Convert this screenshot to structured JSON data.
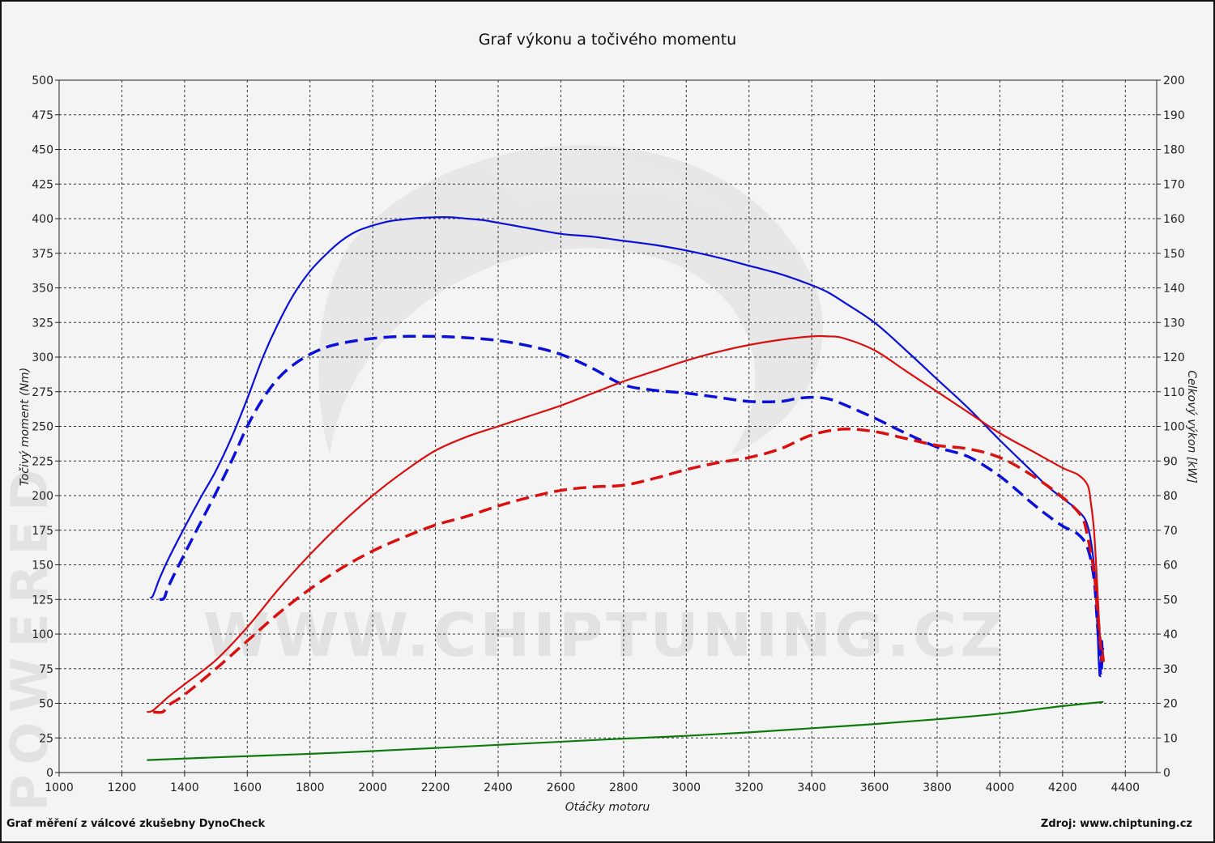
{
  "chart_data": {
    "type": "line",
    "title": "Graf výkonu a točivého momentu",
    "xlabel": "Otáčky motoru",
    "ylabel_left": "Točivý moment (Nm)",
    "ylabel_right": "Celkový výkon [kW]",
    "xlim": [
      1000,
      4500
    ],
    "ylim_left": [
      0,
      500
    ],
    "ylim_right": [
      0,
      200
    ],
    "x_ticks": [
      1000,
      1200,
      1400,
      1600,
      1800,
      2000,
      2200,
      2400,
      2600,
      2800,
      3000,
      3200,
      3400,
      3600,
      3800,
      4000,
      4200,
      4400
    ],
    "y_ticks_left": [
      0,
      25,
      50,
      75,
      100,
      125,
      150,
      175,
      200,
      225,
      250,
      275,
      300,
      325,
      350,
      375,
      400,
      425,
      450,
      475,
      500
    ],
    "y_ticks_right": [
      0,
      10,
      20,
      30,
      40,
      50,
      60,
      70,
      80,
      90,
      100,
      110,
      120,
      130,
      140,
      150,
      160,
      170,
      180,
      190,
      200
    ],
    "grid": true,
    "series": [
      {
        "axis": "left",
        "color": "#0a10d8",
        "style": "solid",
        "points": [
          [
            1290,
            126
          ],
          [
            1300,
            128
          ],
          [
            1320,
            140
          ],
          [
            1350,
            155
          ],
          [
            1400,
            177
          ],
          [
            1450,
            198
          ],
          [
            1500,
            218
          ],
          [
            1550,
            242
          ],
          [
            1600,
            270
          ],
          [
            1650,
            300
          ],
          [
            1700,
            325
          ],
          [
            1750,
            346
          ],
          [
            1800,
            362
          ],
          [
            1850,
            374
          ],
          [
            1900,
            384
          ],
          [
            1950,
            391
          ],
          [
            2000,
            395
          ],
          [
            2050,
            398
          ],
          [
            2100,
            399.5
          ],
          [
            2150,
            400.5
          ],
          [
            2200,
            401
          ],
          [
            2250,
            401
          ],
          [
            2300,
            400
          ],
          [
            2350,
            399
          ],
          [
            2400,
            397
          ],
          [
            2450,
            395
          ],
          [
            2500,
            393
          ],
          [
            2600,
            389
          ],
          [
            2700,
            387
          ],
          [
            2800,
            384
          ],
          [
            2900,
            381
          ],
          [
            3000,
            377
          ],
          [
            3100,
            372
          ],
          [
            3200,
            366
          ],
          [
            3300,
            360
          ],
          [
            3400,
            352
          ],
          [
            3450,
            347
          ],
          [
            3500,
            340
          ],
          [
            3600,
            325
          ],
          [
            3700,
            305
          ],
          [
            3800,
            284
          ],
          [
            3900,
            263
          ],
          [
            4000,
            240
          ],
          [
            4100,
            218
          ],
          [
            4150,
            207
          ],
          [
            4200,
            198
          ],
          [
            4250,
            189
          ],
          [
            4280,
            178
          ],
          [
            4300,
            150
          ],
          [
            4310,
            110
          ],
          [
            4318,
            70
          ],
          [
            4325,
            95
          ],
          [
            4330,
            80
          ]
        ]
      },
      {
        "axis": "left",
        "color": "#0a10d8",
        "style": "dashed",
        "points": [
          [
            1320,
            125
          ],
          [
            1335,
            126
          ],
          [
            1350,
            135
          ],
          [
            1400,
            158
          ],
          [
            1450,
            180
          ],
          [
            1500,
            202
          ],
          [
            1550,
            225
          ],
          [
            1600,
            250
          ],
          [
            1650,
            270
          ],
          [
            1700,
            285
          ],
          [
            1750,
            295
          ],
          [
            1800,
            302
          ],
          [
            1850,
            307
          ],
          [
            1900,
            310
          ],
          [
            1950,
            312
          ],
          [
            2000,
            313.5
          ],
          [
            2050,
            314.5
          ],
          [
            2100,
            315
          ],
          [
            2200,
            315
          ],
          [
            2300,
            314
          ],
          [
            2400,
            312
          ],
          [
            2500,
            308
          ],
          [
            2600,
            302
          ],
          [
            2700,
            292
          ],
          [
            2800,
            280
          ],
          [
            2900,
            276
          ],
          [
            3000,
            274
          ],
          [
            3100,
            271
          ],
          [
            3200,
            268
          ],
          [
            3300,
            268
          ],
          [
            3350,
            270
          ],
          [
            3400,
            271
          ],
          [
            3450,
            270
          ],
          [
            3500,
            266
          ],
          [
            3600,
            256
          ],
          [
            3700,
            245
          ],
          [
            3800,
            235
          ],
          [
            3900,
            228
          ],
          [
            4000,
            214
          ],
          [
            4100,
            195
          ],
          [
            4150,
            186
          ],
          [
            4200,
            178
          ],
          [
            4250,
            172
          ],
          [
            4280,
            162
          ],
          [
            4300,
            140
          ],
          [
            4310,
            110
          ],
          [
            4318,
            85
          ],
          [
            4322,
            70
          ],
          [
            4328,
            90
          ]
        ]
      },
      {
        "axis": "right",
        "color": "#d91010",
        "style": "solid",
        "points": [
          [
            1280,
            17.5
          ],
          [
            1300,
            18
          ],
          [
            1350,
            22
          ],
          [
            1400,
            25.5
          ],
          [
            1500,
            32.5
          ],
          [
            1600,
            42
          ],
          [
            1700,
            53
          ],
          [
            1800,
            63
          ],
          [
            1900,
            72
          ],
          [
            2000,
            80
          ],
          [
            2100,
            87
          ],
          [
            2200,
            93
          ],
          [
            2300,
            97
          ],
          [
            2400,
            100
          ],
          [
            2500,
            103
          ],
          [
            2600,
            106
          ],
          [
            2700,
            109.5
          ],
          [
            2800,
            113
          ],
          [
            2900,
            116
          ],
          [
            3000,
            119
          ],
          [
            3100,
            121.5
          ],
          [
            3200,
            123.5
          ],
          [
            3300,
            125
          ],
          [
            3400,
            126
          ],
          [
            3450,
            126
          ],
          [
            3500,
            125.5
          ],
          [
            3600,
            122
          ],
          [
            3700,
            116
          ],
          [
            3800,
            110
          ],
          [
            3900,
            104
          ],
          [
            4000,
            98
          ],
          [
            4100,
            93
          ],
          [
            4200,
            88
          ],
          [
            4250,
            86
          ],
          [
            4280,
            83
          ],
          [
            4290,
            78
          ],
          [
            4300,
            70
          ],
          [
            4310,
            55
          ],
          [
            4320,
            38
          ],
          [
            4328,
            35
          ],
          [
            4332,
            32
          ]
        ]
      },
      {
        "axis": "right",
        "color": "#d91010",
        "style": "dashed",
        "points": [
          [
            1300,
            17.5
          ],
          [
            1330,
            17.5
          ],
          [
            1350,
            19.5
          ],
          [
            1400,
            22.5
          ],
          [
            1500,
            30
          ],
          [
            1600,
            38
          ],
          [
            1700,
            46
          ],
          [
            1800,
            53
          ],
          [
            1900,
            59
          ],
          [
            2000,
            64
          ],
          [
            2100,
            68
          ],
          [
            2200,
            71.5
          ],
          [
            2300,
            74
          ],
          [
            2400,
            77
          ],
          [
            2500,
            79.5
          ],
          [
            2600,
            81.5
          ],
          [
            2700,
            82.5
          ],
          [
            2800,
            83
          ],
          [
            2900,
            85
          ],
          [
            3000,
            87.5
          ],
          [
            3100,
            89.5
          ],
          [
            3200,
            91
          ],
          [
            3300,
            93.5
          ],
          [
            3400,
            97.5
          ],
          [
            3500,
            99.2
          ],
          [
            3600,
            98.5
          ],
          [
            3700,
            96.5
          ],
          [
            3800,
            94.5
          ],
          [
            3900,
            93.5
          ],
          [
            4000,
            91
          ],
          [
            4100,
            86
          ],
          [
            4200,
            79.5
          ],
          [
            4260,
            74
          ],
          [
            4280,
            68
          ],
          [
            4300,
            58
          ],
          [
            4310,
            48
          ],
          [
            4320,
            38
          ],
          [
            4325,
            32
          ]
        ]
      },
      {
        "axis": "left",
        "color": "#0e7a0e",
        "style": "solid",
        "points": [
          [
            1280,
            9
          ],
          [
            1500,
            11
          ],
          [
            1800,
            13.5
          ],
          [
            2000,
            15.5
          ],
          [
            2400,
            20
          ],
          [
            2800,
            24.5
          ],
          [
            3000,
            26.5
          ],
          [
            3200,
            29
          ],
          [
            3400,
            32
          ],
          [
            3600,
            35
          ],
          [
            3800,
            38.5
          ],
          [
            4000,
            42.5
          ],
          [
            4200,
            48
          ],
          [
            4330,
            51
          ]
        ]
      }
    ],
    "watermark": "WWW.CHIPTUNING.CZ",
    "side_watermark": "POWERED",
    "footer_left": "Graf měření z válcové zkušebny DynoCheck",
    "footer_right": "Zdroj: www.chiptuning.cz"
  }
}
